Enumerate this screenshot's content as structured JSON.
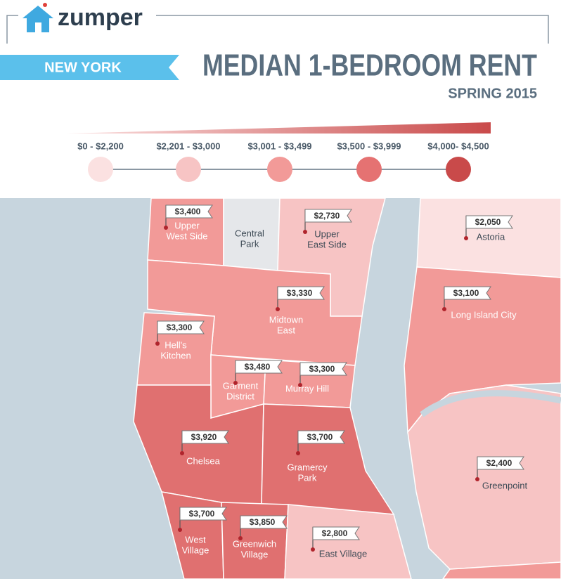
{
  "header": {
    "brand": "zumper",
    "city": "NEW YORK",
    "title": "MEDIAN 1-BEDROOM RENT",
    "subtitle": "SPRING 2015"
  },
  "legend": [
    "$0 - $2,200",
    "$2,201 - $3,000",
    "$3,001 - $3,499",
    "$3,500 - $3,999",
    "$4,000- $4,500"
  ],
  "neighborhoods": [
    {
      "name_lines": [
        "Upper",
        "West Side"
      ],
      "price": "$3,400"
    },
    {
      "name_lines": [
        "Central",
        "Park"
      ]
    },
    {
      "name_lines": [
        "Upper",
        "East Side"
      ],
      "price": "$2,730"
    },
    {
      "name_lines": [
        "Astoria"
      ],
      "price": "$2,050"
    },
    {
      "name_lines": [
        "Midtown",
        "East"
      ],
      "price": "$3,330"
    },
    {
      "name_lines": [
        "Long Island City"
      ],
      "price": "$3,100"
    },
    {
      "name_lines": [
        "Hell's",
        "Kitchen"
      ],
      "price": "$3,300"
    },
    {
      "name_lines": [
        "Garment",
        "District"
      ],
      "price": "$3,480"
    },
    {
      "name_lines": [
        "Murray Hill"
      ],
      "price": "$3,300"
    },
    {
      "name_lines": [
        "Chelsea"
      ],
      "price": "$3,920"
    },
    {
      "name_lines": [
        "Gramercy",
        "Park"
      ],
      "price": "$3,700"
    },
    {
      "name_lines": [
        "Greenpoint"
      ],
      "price": "$2,400"
    },
    {
      "name_lines": [
        "West",
        "Village"
      ],
      "price": "$3,700"
    },
    {
      "name_lines": [
        "Greenwich",
        "Village"
      ],
      "price": "$3,850"
    },
    {
      "name_lines": [
        "East Village"
      ],
      "price": "$2,800"
    }
  ]
}
